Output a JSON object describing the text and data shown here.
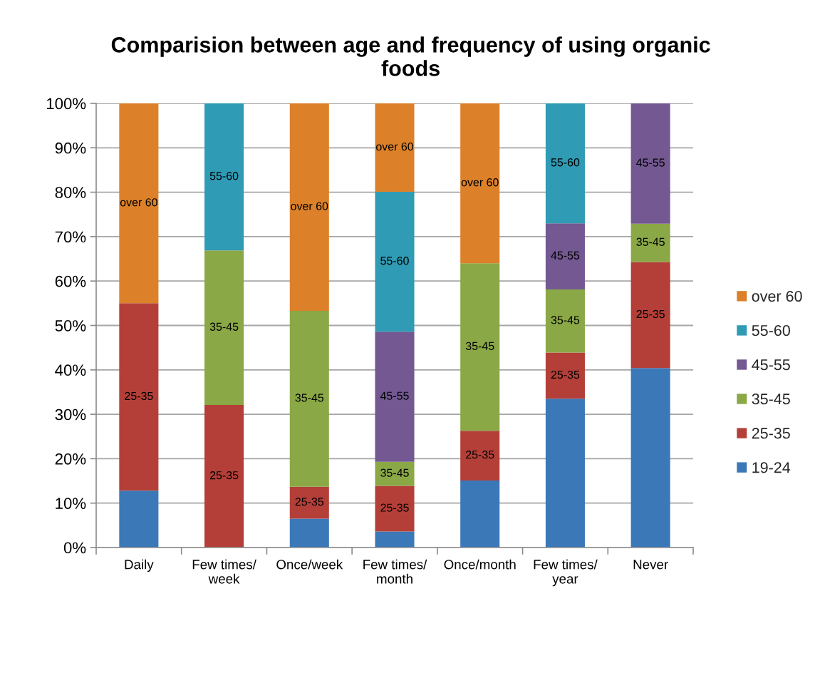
{
  "chart_data": {
    "type": "bar",
    "title": "Comparision between age and frequency of using organic foods",
    "categories": [
      "Daily",
      "Few times/ week",
      "Once/week",
      "Few times/ month",
      "Once/month",
      "Few times/ year",
      "Never"
    ],
    "stacked": true,
    "series": [
      {
        "name": "19-24",
        "color": "#3b78b8",
        "values": [
          12.8,
          0,
          6.5,
          3.6,
          15.1,
          33.5,
          40.4
        ]
      },
      {
        "name": "25-35",
        "color": "#b43f38",
        "values": [
          42.2,
          32.1,
          7.2,
          10.3,
          11.2,
          10.4,
          23.9
        ],
        "value_labels": [
          "25-35",
          "25-35",
          "25-35",
          "25-35",
          "25-35",
          "25-35",
          "25-35"
        ]
      },
      {
        "name": "35-45",
        "color": "#8aa845",
        "values": [
          0,
          34.8,
          39.6,
          5.4,
          37.7,
          14.2,
          8.6
        ],
        "value_labels": [
          null,
          "35-45",
          "35-45",
          "35-45",
          "35-45",
          "35-45",
          "35-45"
        ]
      },
      {
        "name": "45-55",
        "color": "#735892",
        "values": [
          0,
          0,
          0,
          29.3,
          0,
          14.9,
          27.1
        ],
        "value_labels": [
          null,
          null,
          null,
          "45-55",
          null,
          "45-55",
          "45-55"
        ]
      },
      {
        "name": "55-60",
        "color": "#2f9bb4",
        "values": [
          0,
          33.1,
          0,
          31.5,
          0,
          27.0,
          0
        ],
        "value_labels": [
          null,
          "55-60",
          null,
          "55-60",
          null,
          "55-60",
          null
        ]
      },
      {
        "name": "over 60",
        "color": "#dc8129",
        "values": [
          45.0,
          0,
          46.7,
          19.9,
          36.0,
          0,
          0
        ],
        "value_labels": [
          "over 60",
          null,
          "over 60",
          "over 60",
          "over 60",
          null,
          null
        ]
      }
    ],
    "ylim": [
      0,
      100
    ],
    "yticks": [
      {
        "value": 0,
        "label": "0%"
      },
      {
        "value": 10,
        "label": "10%"
      },
      {
        "value": 20,
        "label": "20%"
      },
      {
        "value": 30,
        "label": "30%"
      },
      {
        "value": 40,
        "label": "40%"
      },
      {
        "value": 50,
        "label": "50%"
      },
      {
        "value": 60,
        "label": "60%"
      },
      {
        "value": 70,
        "label": "70%"
      },
      {
        "value": 80,
        "label": "80%"
      },
      {
        "value": 90,
        "label": "90%"
      },
      {
        "value": 100,
        "label": "100%"
      }
    ],
    "grid": "y",
    "legend": "right"
  }
}
